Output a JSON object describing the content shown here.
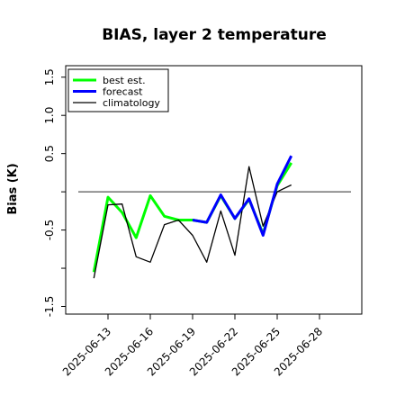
{
  "chart_data": {
    "type": "line",
    "title": "BIAS, layer 2 temperature",
    "xlabel": "",
    "ylabel": "Bias (K)",
    "ylim": [
      -1.6,
      1.65
    ],
    "yticks": [
      -1.5,
      -1.0,
      -0.5,
      0.0,
      0.5,
      1.0,
      1.5
    ],
    "ytick_labels": [
      "-1.5",
      "",
      "-0.5",
      "",
      "0.5",
      "1.0",
      "1.5"
    ],
    "xlim": [
      "2025-06-10",
      "2025-07-01"
    ],
    "xticks": [
      "2025-06-13",
      "2025-06-16",
      "2025-06-19",
      "2025-06-22",
      "2025-06-25",
      "2025-06-28"
    ],
    "highlighted_xtick": "2025-06-19",
    "highlight_color": "#228b22",
    "reference_line": 0.0,
    "grid": false,
    "legend_position": "top-left",
    "series": [
      {
        "name": "best est.",
        "color": "#00ff00",
        "linewidth": 3,
        "x": [
          "2025-06-12",
          "2025-06-13",
          "2025-06-14",
          "2025-06-15",
          "2025-06-16",
          "2025-06-17",
          "2025-06-18",
          "2025-06-19",
          "2025-06-20",
          "2025-06-21",
          "2025-06-22",
          "2025-06-23",
          "2025-06-24",
          "2025-06-25",
          "2025-06-26"
        ],
        "values": [
          -1.05,
          -0.07,
          -0.27,
          -0.6,
          -0.05,
          -0.32,
          -0.37,
          -0.37,
          -0.4,
          -0.05,
          -0.35,
          -0.1,
          -0.55,
          0.08,
          0.38
        ]
      },
      {
        "name": "forecast",
        "color": "#0000ff",
        "linewidth": 3,
        "x": [
          "2025-06-19",
          "2025-06-20",
          "2025-06-21",
          "2025-06-22",
          "2025-06-23",
          "2025-06-24",
          "2025-06-25",
          "2025-06-26"
        ],
        "values": [
          -0.37,
          -0.4,
          -0.04,
          -0.35,
          -0.09,
          -0.57,
          0.1,
          0.47
        ]
      },
      {
        "name": "climatology",
        "color": "#000000",
        "linewidth": 1.3,
        "x": [
          "2025-06-12",
          "2025-06-13",
          "2025-06-14",
          "2025-06-15",
          "2025-06-16",
          "2025-06-17",
          "2025-06-18",
          "2025-06-19",
          "2025-06-20",
          "2025-06-21",
          "2025-06-22",
          "2025-06-23",
          "2025-06-24",
          "2025-06-25",
          "2025-06-26"
        ],
        "values": [
          -1.13,
          -0.17,
          -0.16,
          -0.85,
          -0.92,
          -0.43,
          -0.37,
          -0.57,
          -0.92,
          -0.25,
          -0.83,
          0.33,
          -0.45,
          0.0,
          0.09
        ]
      }
    ]
  }
}
